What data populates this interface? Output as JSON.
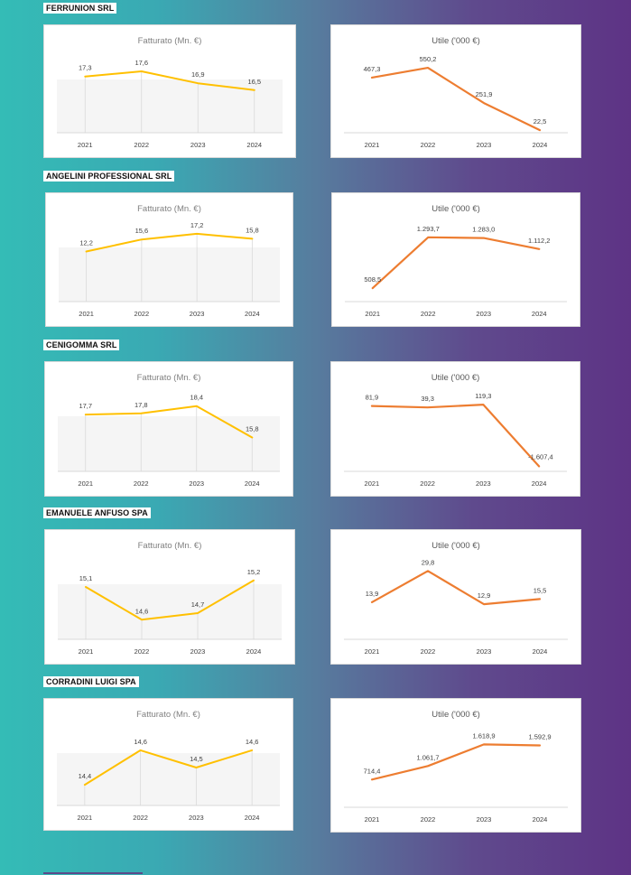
{
  "companies": [
    {
      "name": "FERRUNION SRL",
      "charts": [
        {
          "type": "line",
          "title": "Fatturato (Mn. €)",
          "categories": [
            "2021",
            "2022",
            "2023",
            "2024"
          ],
          "values": [
            17.3,
            17.6,
            16.9,
            16.5
          ],
          "labels": [
            "17,3",
            "17,6",
            "16,9",
            "16,5"
          ],
          "color": "#ffc000",
          "ylim": [
            14.0,
            18.5
          ],
          "style": "revenue"
        },
        {
          "type": "line",
          "title": "Utile ('000 €)",
          "categories": [
            "2021",
            "2022",
            "2023",
            "2024"
          ],
          "values": [
            467.3,
            550.2,
            251.9,
            22.5
          ],
          "labels": [
            "467,3",
            "550,2",
            "251,9",
            "22,5"
          ],
          "color": "#ed7d31",
          "ylim": [
            0,
            650
          ],
          "style": "profit"
        }
      ]
    },
    {
      "name": "ANGELINI PROFESSIONAL SRL",
      "charts": [
        {
          "type": "line",
          "title": "Fatturato (Mn. €)",
          "categories": [
            "2021",
            "2022",
            "2023",
            "2024"
          ],
          "values": [
            12.2,
            15.6,
            17.2,
            15.8
          ],
          "labels": [
            "12,2",
            "15,6",
            "17,2",
            "15,8"
          ],
          "color": "#ffc000",
          "ylim": [
            -2,
            20
          ],
          "style": "revenue"
        },
        {
          "type": "line",
          "title": "Utile ('000 €)",
          "categories": [
            "2021",
            "2022",
            "2023",
            "2024"
          ],
          "values": [
            508.5,
            1293.7,
            1283.0,
            1112.2
          ],
          "labels": [
            "508,5",
            "1.293,7",
            "1.283,0",
            "1.112,2"
          ],
          "color": "#ed7d31",
          "ylim": [
            300,
            1500
          ],
          "style": "profit"
        }
      ]
    },
    {
      "name": "CENIGOMMA SRL",
      "charts": [
        {
          "type": "line",
          "title": "Fatturato (Mn. €)",
          "categories": [
            "2021",
            "2022",
            "2023",
            "2024"
          ],
          "values": [
            17.7,
            17.8,
            18.4,
            15.8
          ],
          "labels": [
            "17,7",
            "17,8",
            "18,4",
            "15,8"
          ],
          "color": "#ffc000",
          "ylim": [
            13.0,
            19.5
          ],
          "style": "revenue"
        },
        {
          "type": "line",
          "title": "Utile ('000 €)",
          "categories": [
            "2021",
            "2022",
            "2023",
            "2024"
          ],
          "values": [
            81.9,
            39.3,
            119.3,
            -1607.4
          ],
          "labels": [
            "81,9",
            "39,3",
            "119,3",
            "-1.607,4"
          ],
          "color": "#ed7d31",
          "ylim": [
            -1750,
            450
          ],
          "style": "profit"
        }
      ]
    },
    {
      "name": "EMANUELE ANFUSO SPA",
      "charts": [
        {
          "type": "line",
          "title": "Fatturato (Mn. €)",
          "categories": [
            "2021",
            "2022",
            "2023",
            "2024"
          ],
          "values": [
            15.1,
            14.6,
            14.7,
            15.2
          ],
          "labels": [
            "15,1",
            "14,6",
            "14,7",
            "15,2"
          ],
          "color": "#ffc000",
          "ylim": [
            14.3,
            15.5
          ],
          "style": "revenue"
        },
        {
          "type": "line",
          "title": "Utile ('000 €)",
          "categories": [
            "2021",
            "2022",
            "2023",
            "2024"
          ],
          "values": [
            13.9,
            29.8,
            12.9,
            15.5
          ],
          "labels": [
            "13,9",
            "29,8",
            "12,9",
            "15,5"
          ],
          "color": "#ed7d31",
          "ylim": [
            -5,
            35
          ],
          "style": "profit"
        }
      ]
    },
    {
      "name": "CORRADINI LUIGI SPA",
      "charts": [
        {
          "type": "line",
          "title": "Fatturato (Mn. €)",
          "categories": [
            "2021",
            "2022",
            "2023",
            "2024"
          ],
          "values": [
            14.4,
            14.6,
            14.5,
            14.6
          ],
          "labels": [
            "14,4",
            "14,6",
            "14,5",
            "14,6"
          ],
          "color": "#ffc000",
          "ylim": [
            14.28,
            14.72
          ],
          "style": "revenue"
        },
        {
          "type": "line",
          "title": "Utile ('000 €)",
          "categories": [
            "2021",
            "2022",
            "2023",
            "2024"
          ],
          "values": [
            714.4,
            1061.7,
            1618.9,
            1592.9
          ],
          "labels": [
            "714,4",
            "1.061,7",
            "1.618,9",
            "1.592,9"
          ],
          "color": "#ed7d31",
          "ylim": [
            0,
            2000
          ],
          "style": "profit"
        }
      ]
    }
  ],
  "chart_data": [
    {
      "type": "line",
      "title": "Fatturato (Mn. €)",
      "categories": [
        "2021",
        "2022",
        "2023",
        "2024"
      ],
      "series": [
        {
          "name": "",
          "values": [
            17.3,
            17.6,
            16.9,
            16.5
          ]
        }
      ]
    },
    {
      "type": "line",
      "title": "Utile ('000 €)",
      "categories": [
        "2021",
        "2022",
        "2023",
        "2024"
      ],
      "series": [
        {
          "name": "",
          "values": [
            467.3,
            550.2,
            251.9,
            22.5
          ]
        }
      ]
    },
    {
      "type": "line",
      "title": "Fatturato (Mn. €)",
      "categories": [
        "2021",
        "2022",
        "2023",
        "2024"
      ],
      "series": [
        {
          "name": "",
          "values": [
            12.2,
            15.6,
            17.2,
            15.8
          ]
        }
      ]
    },
    {
      "type": "line",
      "title": "Utile ('000 €)",
      "categories": [
        "2021",
        "2022",
        "2023",
        "2024"
      ],
      "series": [
        {
          "name": "",
          "values": [
            508.5,
            1293.7,
            1283.0,
            1112.2
          ]
        }
      ]
    },
    {
      "type": "line",
      "title": "Fatturato (Mn. €)",
      "categories": [
        "2021",
        "2022",
        "2023",
        "2024"
      ],
      "series": [
        {
          "name": "",
          "values": [
            17.7,
            17.8,
            18.4,
            15.8
          ]
        }
      ]
    },
    {
      "type": "line",
      "title": "Utile ('000 €)",
      "categories": [
        "2021",
        "2022",
        "2023",
        "2024"
      ],
      "series": [
        {
          "name": "",
          "values": [
            81.9,
            39.3,
            119.3,
            -1607.4
          ]
        }
      ]
    },
    {
      "type": "line",
      "title": "Fatturato (Mn. €)",
      "categories": [
        "2021",
        "2022",
        "2023",
        "2024"
      ],
      "series": [
        {
          "name": "",
          "values": [
            15.1,
            14.6,
            14.7,
            15.2
          ]
        }
      ]
    },
    {
      "type": "line",
      "title": "Utile ('000 €)",
      "categories": [
        "2021",
        "2022",
        "2023",
        "2024"
      ],
      "series": [
        {
          "name": "",
          "values": [
            13.9,
            29.8,
            12.9,
            15.5
          ]
        }
      ]
    },
    {
      "type": "line",
      "title": "Fatturato (Mn. €)",
      "categories": [
        "2021",
        "2022",
        "2023",
        "2024"
      ],
      "series": [
        {
          "name": "",
          "values": [
            14.4,
            14.6,
            14.5,
            14.6
          ]
        }
      ]
    },
    {
      "type": "line",
      "title": "Utile ('000 €)",
      "categories": [
        "2021",
        "2022",
        "2023",
        "2024"
      ],
      "series": [
        {
          "name": "",
          "values": [
            714.4,
            1061.7,
            1618.9,
            1592.9
          ]
        }
      ]
    }
  ]
}
